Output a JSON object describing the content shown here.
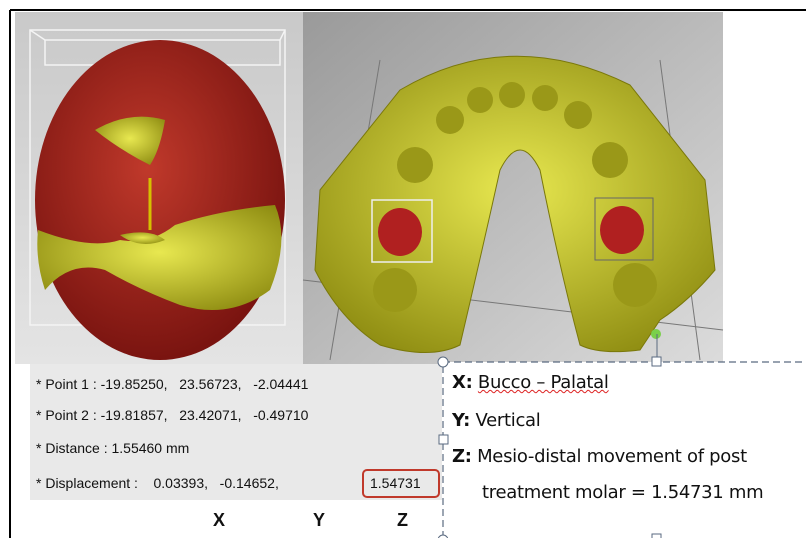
{
  "measurements": [
    {
      "label": "* Point 1 :",
      "values": [
        "-19.85250",
        "23.56723",
        "-2.04441"
      ]
    },
    {
      "label": "* Point 2 :",
      "values": [
        "-19.81857",
        "23.42071",
        "-0.49710"
      ]
    },
    {
      "label": "* Distance :",
      "values": [
        "1.55460 mm"
      ]
    },
    {
      "label": "* Displacement :",
      "values": [
        "0.03393",
        "-0.14652",
        "1.54731"
      ]
    }
  ],
  "legend": [
    {
      "key": "X:",
      "text": "Bucco – Palatal"
    },
    {
      "key": "Y:",
      "text": "Vertical"
    },
    {
      "key": "Z:",
      "text": "Mesio-distal movement of post",
      "continuation": "treatment molar = 1.54731 mm"
    }
  ],
  "axes": [
    "X",
    "Y",
    "Z"
  ]
}
